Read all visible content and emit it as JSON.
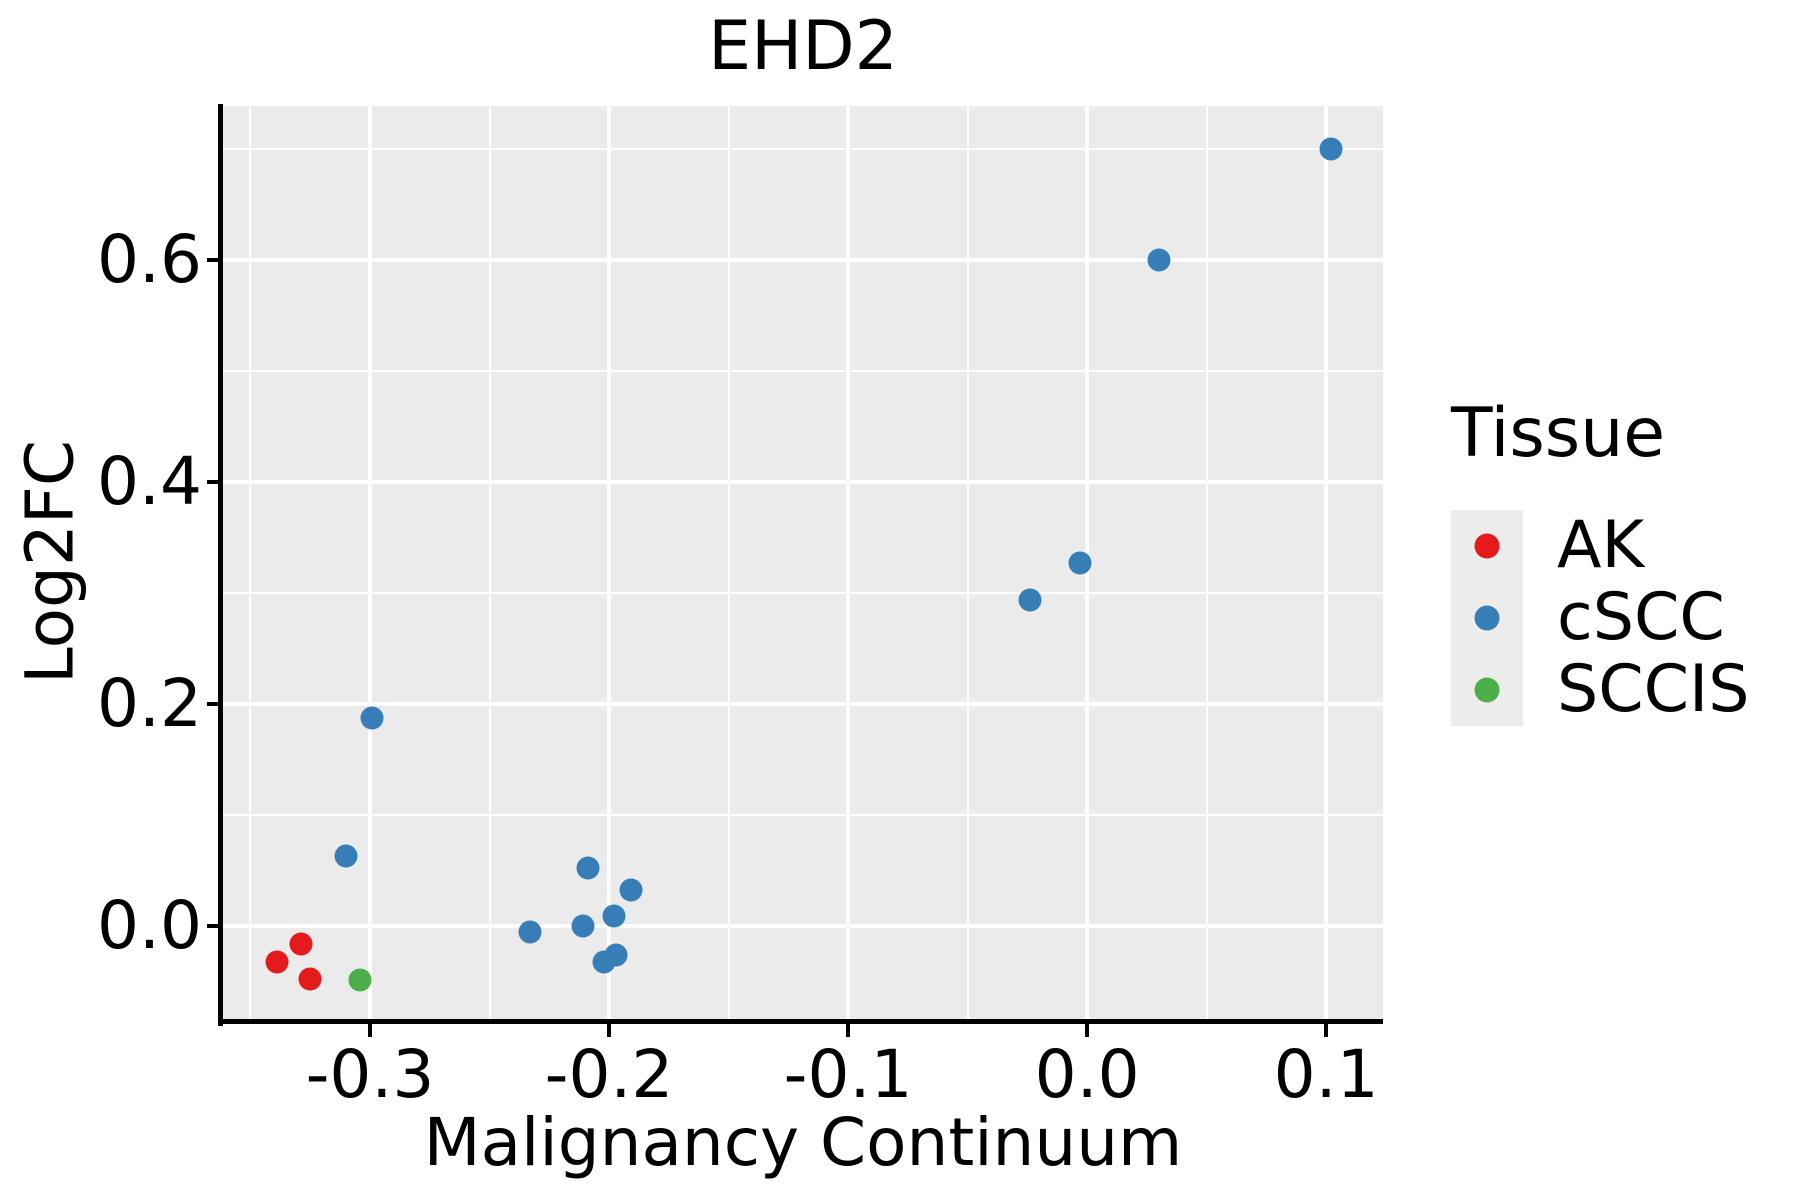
{
  "chart_data": {
    "type": "scatter",
    "title": "EHD2",
    "xlabel": "Malignancy Continuum",
    "ylabel": "Log2FC",
    "legend_title": "Tissue",
    "legend_position": "right",
    "panel_background": "#EBEBEB",
    "grid": "on",
    "grid_color": "#FFFFFF",
    "legend_key_background": "#ECECEC",
    "x_axis": {
      "ticks": [
        -0.3,
        -0.2,
        -0.1,
        0.0,
        0.1
      ],
      "tick_labels": [
        "-0.3",
        "-0.2",
        "-0.1",
        "0.0",
        "0.1"
      ],
      "minor_ticks": [
        -0.35,
        -0.25,
        -0.15,
        -0.05,
        0.05
      ],
      "range": [
        -0.3615,
        0.1238
      ]
    },
    "y_axis": {
      "ticks": [
        0.0,
        0.2,
        0.4,
        0.6
      ],
      "tick_labels": [
        "0.0",
        "0.2",
        "0.4",
        "0.6"
      ],
      "minor_ticks": [
        0.1,
        0.3,
        0.5,
        0.7
      ],
      "range": [
        -0.0856,
        0.7387
      ]
    },
    "series": [
      {
        "name": "AK",
        "color": "#E41A1C",
        "points": [
          [
            -0.329,
            -0.016
          ],
          [
            -0.339,
            -0.032
          ],
          [
            -0.325,
            -0.048
          ]
        ]
      },
      {
        "name": "cSCC",
        "color": "#377EB8",
        "points": [
          [
            0.102,
            0.7
          ],
          [
            0.03,
            0.6
          ],
          [
            -0.003,
            0.327
          ],
          [
            -0.024,
            0.294
          ],
          [
            -0.299,
            0.187
          ],
          [
            -0.31,
            0.063
          ],
          [
            -0.209,
            0.052
          ],
          [
            -0.191,
            0.032
          ],
          [
            -0.198,
            0.009
          ],
          [
            -0.211,
            0.0
          ],
          [
            -0.233,
            -0.005
          ],
          [
            -0.197,
            -0.026
          ],
          [
            -0.202,
            -0.032
          ]
        ]
      },
      {
        "name": "SCCIS",
        "color": "#4DAF4A",
        "points": [
          [
            -0.304,
            -0.049
          ]
        ]
      }
    ]
  }
}
